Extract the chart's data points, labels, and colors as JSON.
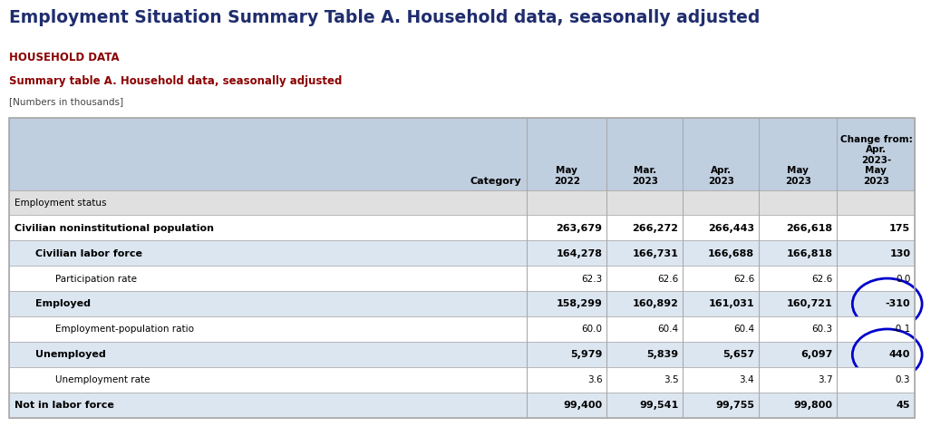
{
  "title": "Employment Situation Summary Table A. Household data, seasonally adjusted",
  "label1": "HOUSEHOLD DATA",
  "label2": "Summary table A. Household data, seasonally adjusted",
  "label3": "[Numbers in thousands]",
  "col_headers": [
    "Category",
    "May\n2022",
    "Mar.\n2023",
    "Apr.\n2023",
    "May\n2023",
    "Change from:\nApr.\n2023-\nMay\n2023"
  ],
  "rows": [
    {
      "category": "Employment status",
      "values": [
        "",
        "",
        "",
        "",
        ""
      ],
      "indent": 0,
      "bold": false,
      "bg": "#e0e0e0",
      "circle": null
    },
    {
      "category": "Civilian noninstitutional population",
      "values": [
        "263,679",
        "266,272",
        "266,443",
        "266,618",
        "175"
      ],
      "indent": 0,
      "bold": true,
      "bg": "#ffffff",
      "circle": null
    },
    {
      "category": "Civilian labor force",
      "values": [
        "164,278",
        "166,731",
        "166,688",
        "166,818",
        "130"
      ],
      "indent": 1,
      "bold": true,
      "bg": "#dce6f1",
      "circle": null
    },
    {
      "category": "Participation rate",
      "values": [
        "62.3",
        "62.6",
        "62.6",
        "62.6",
        "0.0"
      ],
      "indent": 2,
      "bold": false,
      "bg": "#ffffff",
      "circle": null
    },
    {
      "category": "Employed",
      "values": [
        "158,299",
        "160,892",
        "161,031",
        "160,721",
        "-310"
      ],
      "indent": 1,
      "bold": true,
      "bg": "#dce6f1",
      "circle": "neg"
    },
    {
      "category": "Employment-population ratio",
      "values": [
        "60.0",
        "60.4",
        "60.4",
        "60.3",
        "-0.1"
      ],
      "indent": 2,
      "bold": false,
      "bg": "#ffffff",
      "circle": null
    },
    {
      "category": "Unemployed",
      "values": [
        "5,979",
        "5,839",
        "5,657",
        "6,097",
        "440"
      ],
      "indent": 1,
      "bold": true,
      "bg": "#dce6f1",
      "circle": "pos"
    },
    {
      "category": "Unemployment rate",
      "values": [
        "3.6",
        "3.5",
        "3.4",
        "3.7",
        "0.3"
      ],
      "indent": 2,
      "bold": false,
      "bg": "#ffffff",
      "circle": null
    },
    {
      "category": "Not in labor force",
      "values": [
        "99,400",
        "99,541",
        "99,755",
        "99,800",
        "45"
      ],
      "indent": 0,
      "bold": true,
      "bg": "#dce6f1",
      "circle": null
    }
  ],
  "title_color": "#1f2d6e",
  "label1_color": "#8b0000",
  "label2_color": "#8b0000",
  "label3_color": "#444444",
  "header_bg": "#c0cfe0",
  "circle_color": "#0000cc",
  "table_border_color": "#aaaaaa"
}
